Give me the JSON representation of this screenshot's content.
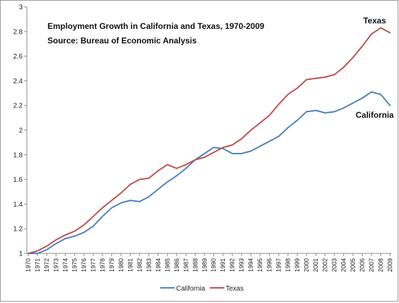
{
  "chart_data": {
    "type": "line",
    "title": "Employment Growth in California and Texas, 1970-2009",
    "subtitle": "Source: Bureau of Economic Analysis",
    "xlabel": "",
    "ylabel": "",
    "ylim": [
      1,
      3
    ],
    "y_ticks": [
      "1",
      "1.2",
      "1.4",
      "1.6",
      "1.8",
      "2",
      "2.2",
      "2.4",
      "2.6",
      "2.8",
      "3"
    ],
    "grid": false,
    "legend_position": "bottom",
    "categories": [
      "1970",
      "1971",
      "1972",
      "1973",
      "1974",
      "1975",
      "1976",
      "1977",
      "1978",
      "1979",
      "1980",
      "1981",
      "1982",
      "1983",
      "1984",
      "1985",
      "1986",
      "1987",
      "1988",
      "1989",
      "1990",
      "1991",
      "1992",
      "1993",
      "1994",
      "1995",
      "1996",
      "1997",
      "1998",
      "1999",
      "2000",
      "2001",
      "2002",
      "2003",
      "2004",
      "2005",
      "2006",
      "2007",
      "2008",
      "2009"
    ],
    "series": [
      {
        "name": "California",
        "color": "#4F81BD",
        "values": [
          1.0,
          1.0,
          1.03,
          1.08,
          1.12,
          1.14,
          1.17,
          1.22,
          1.3,
          1.37,
          1.41,
          1.43,
          1.42,
          1.46,
          1.52,
          1.58,
          1.63,
          1.69,
          1.76,
          1.81,
          1.86,
          1.85,
          1.81,
          1.81,
          1.83,
          1.87,
          1.91,
          1.95,
          2.02,
          2.08,
          2.15,
          2.16,
          2.14,
          2.15,
          2.18,
          2.22,
          2.26,
          2.31,
          2.29,
          2.2
        ]
      },
      {
        "name": "Texas",
        "color": "#C0504D",
        "values": [
          1.0,
          1.02,
          1.06,
          1.11,
          1.15,
          1.18,
          1.23,
          1.3,
          1.37,
          1.43,
          1.49,
          1.56,
          1.6,
          1.61,
          1.67,
          1.72,
          1.69,
          1.72,
          1.76,
          1.78,
          1.82,
          1.86,
          1.88,
          1.93,
          2.0,
          2.06,
          2.12,
          2.21,
          2.29,
          2.34,
          2.41,
          2.42,
          2.43,
          2.45,
          2.51,
          2.59,
          2.68,
          2.78,
          2.83,
          2.79
        ]
      }
    ],
    "annotations": [
      {
        "text": "Texas",
        "series": "Texas"
      },
      {
        "text": "California",
        "series": "California"
      }
    ]
  }
}
